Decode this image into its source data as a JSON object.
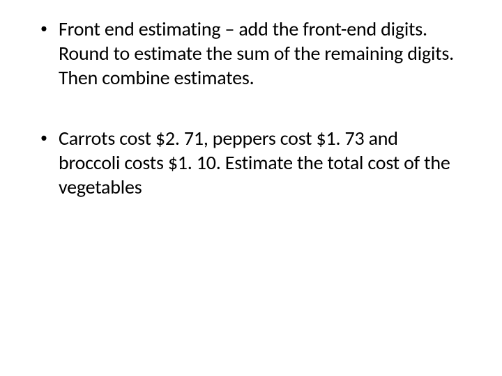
{
  "slide": {
    "background_color": "#ffffff",
    "text_color": "#000000",
    "font_family": "Calibri, 'Segoe UI', Arial, sans-serif",
    "body_fontsize": 28,
    "bullet_marker": "•",
    "bullets": [
      {
        "text": "Front end estimating – add the front-end digits.  Round to estimate the sum of the remaining digits.  Then combine estimates."
      },
      {
        "text": "Carrots cost $2. 71, peppers cost $1. 73 and broccoli costs $1. 10.  Estimate the total cost of the vegetables"
      }
    ]
  }
}
